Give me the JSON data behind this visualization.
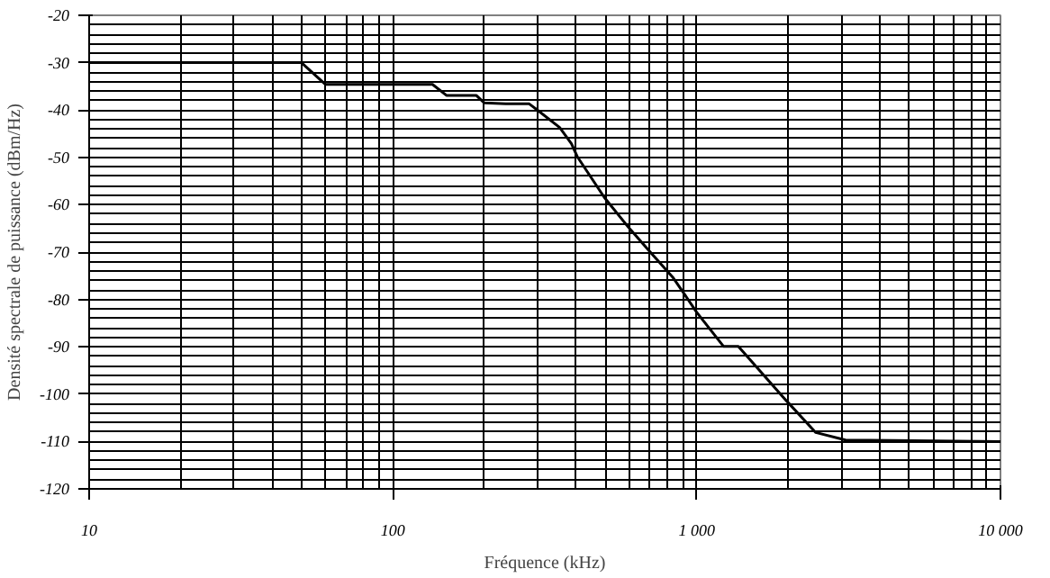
{
  "chart_data": {
    "type": "line",
    "xlabel": "Fréquence (kHz)",
    "ylabel": "Densité spectrale de puissance (dBm/Hz)",
    "x": [
      10,
      50,
      60,
      135,
      150,
      188,
      200,
      235,
      281,
      299,
      354,
      387,
      405,
      497,
      595,
      697,
      834,
      914,
      1000,
      1225,
      1371,
      1968,
      2466,
      3090,
      10000
    ],
    "series": [
      {
        "color": "#000000",
        "values": [
          -30,
          -30,
          -34.6,
          -34.6,
          -36.9,
          -36.9,
          -38.5,
          -38.7,
          -38.7,
          -40,
          -43.7,
          -47.1,
          -49.9,
          -58.5,
          -64.7,
          -69.7,
          -75.3,
          -79,
          -82.7,
          -89.9,
          -89.9,
          -101.3,
          -108.1,
          -109.7,
          -110
        ]
      }
    ],
    "log": "x",
    "xlim": [
      10,
      10000
    ],
    "ylim": [
      -120,
      -20
    ],
    "xticks": [
      10,
      100,
      {
        "value": 1000,
        "label": "1 000"
      },
      {
        "value": 10000,
        "label": "10 000"
      }
    ],
    "yticks": [
      -120,
      -110,
      -100,
      -90,
      -80,
      -70,
      -60,
      -50,
      -40,
      -30,
      -20
    ],
    "grid": true,
    "marker": "none",
    "line_style": "solid"
  }
}
